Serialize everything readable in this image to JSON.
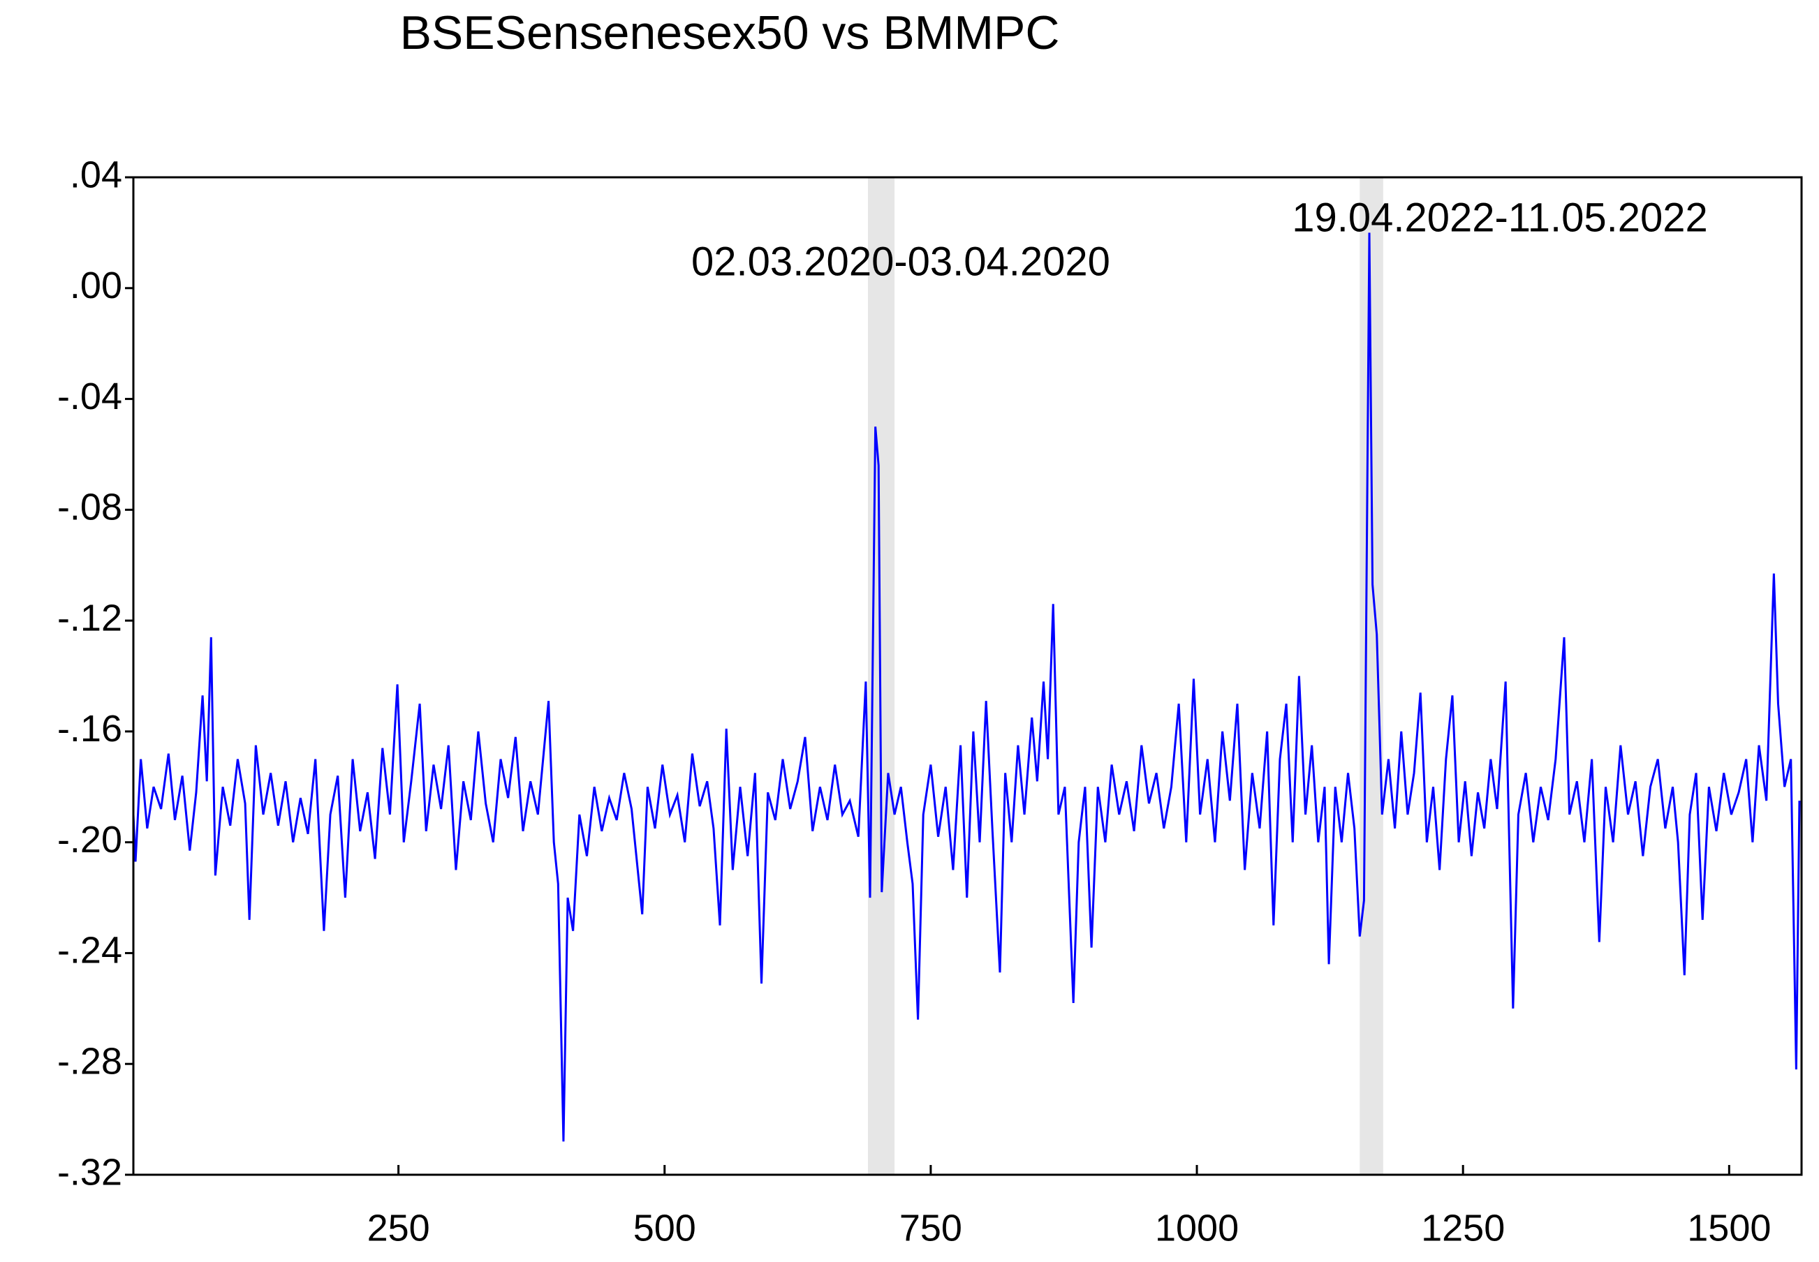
{
  "chart_data": {
    "type": "line",
    "title": "BSESensenesex50 vs BMMPC",
    "xlim": [
      1,
      1568
    ],
    "xticks": [
      250,
      500,
      750,
      1000,
      1250,
      1500
    ],
    "ylim": [
      -0.32,
      0.04
    ],
    "yticks": [
      {
        "value": 0.04,
        "label": ".04"
      },
      {
        "value": 0,
        "label": ".00"
      },
      {
        "value": -0.04,
        "label": "-.04"
      },
      {
        "value": -0.08,
        "label": "-.08"
      },
      {
        "value": -0.12,
        "label": "-.12"
      },
      {
        "value": -0.16,
        "label": "-.16"
      },
      {
        "value": -0.2,
        "label": "-.20"
      },
      {
        "value": -0.24,
        "label": "-.24"
      },
      {
        "value": -0.28,
        "label": "-.28"
      },
      {
        "value": -0.32,
        "label": "-.32"
      }
    ],
    "grid": false,
    "shade_color": "#e6e6e6",
    "annotations": [
      {
        "text": "02.03.2020-03.04.2020",
        "xrange": [
          691,
          716
        ]
      },
      {
        "text": "19.04.2022-11.05.2022",
        "xrange": [
          1153,
          1175
        ]
      }
    ],
    "series": [
      {
        "color": "#0000ff",
        "x": [
          1,
          3,
          8,
          14,
          20,
          27,
          34,
          40,
          47,
          54,
          60,
          66,
          70,
          74,
          78,
          85,
          92,
          99,
          106,
          110,
          116,
          123,
          130,
          137,
          144,
          151,
          158,
          165,
          172,
          180,
          186,
          193,
          200,
          207,
          214,
          221,
          228,
          235,
          242,
          249,
          255,
          262,
          270,
          276,
          283,
          290,
          297,
          304,
          311,
          318,
          325,
          332,
          339,
          346,
          353,
          360,
          367,
          374,
          381,
          391,
          396,
          400,
          405,
          409,
          414,
          420,
          427,
          434,
          441,
          448,
          455,
          462,
          469,
          479,
          484,
          491,
          498,
          505,
          512,
          519,
          526,
          533,
          540,
          546,
          552,
          558,
          564,
          571,
          578,
          585,
          591,
          597,
          604,
          611,
          618,
          625,
          632,
          639,
          646,
          653,
          660,
          667,
          674,
          682,
          689,
          693,
          698,
          701,
          704,
          710,
          716,
          722,
          728,
          733,
          738,
          743,
          750,
          757,
          764,
          771,
          778,
          784,
          790,
          796,
          802,
          808,
          815,
          820,
          826,
          832,
          838,
          845,
          850,
          856,
          860,
          865,
          870,
          876,
          884,
          889,
          895,
          901,
          907,
          914,
          920,
          927,
          934,
          941,
          948,
          955,
          962,
          969,
          976,
          983,
          990,
          997,
          1003,
          1010,
          1017,
          1024,
          1031,
          1038,
          1045,
          1052,
          1059,
          1066,
          1072,
          1078,
          1084,
          1090,
          1096,
          1102,
          1108,
          1114,
          1120,
          1124,
          1130,
          1136,
          1142,
          1148,
          1153,
          1157,
          1162,
          1165,
          1169,
          1174,
          1180,
          1186,
          1192,
          1198,
          1204,
          1210,
          1216,
          1222,
          1228,
          1234,
          1240,
          1246,
          1252,
          1258,
          1264,
          1270,
          1276,
          1282,
          1290,
          1297,
          1302,
          1309,
          1316,
          1323,
          1330,
          1337,
          1345,
          1350,
          1357,
          1364,
          1371,
          1378,
          1384,
          1391,
          1398,
          1405,
          1412,
          1419,
          1426,
          1433,
          1440,
          1447,
          1452,
          1458,
          1463,
          1469,
          1475,
          1481,
          1488,
          1495,
          1502,
          1509,
          1516,
          1522,
          1528,
          1535,
          1542,
          1546,
          1552,
          1558,
          1563,
          1566
        ],
        "values": [
          -0.19,
          -0.207,
          -0.17,
          -0.195,
          -0.18,
          -0.188,
          -0.168,
          -0.192,
          -0.176,
          -0.203,
          -0.182,
          -0.147,
          -0.178,
          -0.126,
          -0.212,
          -0.18,
          -0.194,
          -0.17,
          -0.186,
          -0.228,
          -0.165,
          -0.19,
          -0.175,
          -0.194,
          -0.178,
          -0.2,
          -0.184,
          -0.197,
          -0.17,
          -0.232,
          -0.19,
          -0.176,
          -0.22,
          -0.17,
          -0.196,
          -0.182,
          -0.206,
          -0.166,
          -0.19,
          -0.143,
          -0.2,
          -0.178,
          -0.15,
          -0.196,
          -0.172,
          -0.188,
          -0.165,
          -0.21,
          -0.178,
          -0.192,
          -0.16,
          -0.186,
          -0.2,
          -0.17,
          -0.184,
          -0.162,
          -0.196,
          -0.178,
          -0.19,
          -0.149,
          -0.2,
          -0.215,
          -0.308,
          -0.22,
          -0.232,
          -0.19,
          -0.205,
          -0.18,
          -0.196,
          -0.184,
          -0.192,
          -0.175,
          -0.188,
          -0.226,
          -0.18,
          -0.195,
          -0.172,
          -0.19,
          -0.183,
          -0.2,
          -0.168,
          -0.187,
          -0.178,
          -0.195,
          -0.23,
          -0.159,
          -0.21,
          -0.18,
          -0.205,
          -0.175,
          -0.251,
          -0.182,
          -0.192,
          -0.17,
          -0.188,
          -0.178,
          -0.162,
          -0.196,
          -0.18,
          -0.192,
          -0.172,
          -0.19,
          -0.185,
          -0.198,
          -0.142,
          -0.22,
          -0.05,
          -0.064,
          -0.218,
          -0.175,
          -0.19,
          -0.18,
          -0.2,
          -0.215,
          -0.264,
          -0.19,
          -0.172,
          -0.198,
          -0.18,
          -0.21,
          -0.165,
          -0.22,
          -0.16,
          -0.2,
          -0.149,
          -0.196,
          -0.247,
          -0.175,
          -0.2,
          -0.165,
          -0.19,
          -0.155,
          -0.178,
          -0.142,
          -0.17,
          -0.114,
          -0.19,
          -0.18,
          -0.258,
          -0.2,
          -0.18,
          -0.238,
          -0.18,
          -0.2,
          -0.172,
          -0.19,
          -0.178,
          -0.196,
          -0.165,
          -0.186,
          -0.175,
          -0.195,
          -0.18,
          -0.15,
          -0.2,
          -0.141,
          -0.19,
          -0.17,
          -0.2,
          -0.16,
          -0.185,
          -0.15,
          -0.21,
          -0.175,
          -0.195,
          -0.16,
          -0.23,
          -0.17,
          -0.15,
          -0.2,
          -0.14,
          -0.19,
          -0.165,
          -0.2,
          -0.18,
          -0.244,
          -0.18,
          -0.2,
          -0.175,
          -0.195,
          -0.234,
          -0.221,
          0.02,
          -0.107,
          -0.125,
          -0.19,
          -0.17,
          -0.195,
          -0.16,
          -0.19,
          -0.175,
          -0.146,
          -0.2,
          -0.18,
          -0.21,
          -0.17,
          -0.147,
          -0.2,
          -0.178,
          -0.205,
          -0.182,
          -0.195,
          -0.17,
          -0.188,
          -0.142,
          -0.26,
          -0.19,
          -0.175,
          -0.2,
          -0.18,
          -0.192,
          -0.17,
          -0.126,
          -0.19,
          -0.178,
          -0.2,
          -0.17,
          -0.236,
          -0.18,
          -0.2,
          -0.165,
          -0.19,
          -0.178,
          -0.205,
          -0.18,
          -0.17,
          -0.195,
          -0.18,
          -0.2,
          -0.248,
          -0.19,
          -0.175,
          -0.228,
          -0.18,
          -0.196,
          -0.175,
          -0.19,
          -0.182,
          -0.17,
          -0.2,
          -0.165,
          -0.185,
          -0.103,
          -0.15,
          -0.18,
          -0.17,
          -0.282,
          -0.185
        ]
      }
    ]
  }
}
